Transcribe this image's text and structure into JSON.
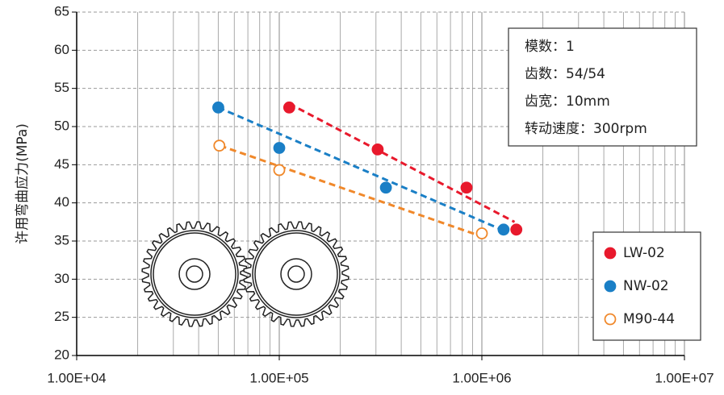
{
  "chart_data": {
    "type": "scatter",
    "y_label": "许用弯曲应力(MPa)",
    "xlim": [
      10000,
      10000000
    ],
    "xscale": "log",
    "xticks": [
      {
        "value": 10000,
        "label": "1.00E+04"
      },
      {
        "value": 100000,
        "label": "1.00E+05"
      },
      {
        "value": 1000000,
        "label": "1.00E+06"
      },
      {
        "value": 10000000,
        "label": "1.00E+07"
      }
    ],
    "ylim": [
      20,
      65
    ],
    "yticks": [
      20,
      25,
      30,
      35,
      40,
      45,
      50,
      55,
      60,
      65
    ],
    "grid": true,
    "legend": "lower right",
    "annotations": [
      "模数：1",
      "齿数：54/54",
      "齿宽：10mm",
      "转动速度：300rpm"
    ],
    "series": [
      {
        "name": "LW-02",
        "color": "#e8192c",
        "filled": true,
        "x": [
          112000,
          306000,
          840000,
          1480000
        ],
        "values": [
          52.5,
          47,
          42,
          36.5
        ],
        "trend": {
          "x": [
            112000,
            1450000
          ],
          "values": [
            53,
            37.5
          ]
        }
      },
      {
        "name": "NW-02",
        "color": "#1a7fc6",
        "filled": true,
        "x": [
          50000,
          100000,
          336000,
          1280000
        ],
        "values": [
          52.5,
          47.2,
          42,
          36.5
        ],
        "trend": {
          "x": [
            50000,
            1250000
          ],
          "values": [
            52.5,
            36.5
          ]
        }
      },
      {
        "name": "M90-44",
        "color": "#f0882a",
        "filled": false,
        "x": [
          50600,
          100000,
          1000000
        ],
        "values": [
          47.5,
          44.3,
          36
        ],
        "trend": {
          "x": [
            51000,
            950000
          ],
          "values": [
            47.5,
            35.8
          ]
        }
      }
    ]
  }
}
